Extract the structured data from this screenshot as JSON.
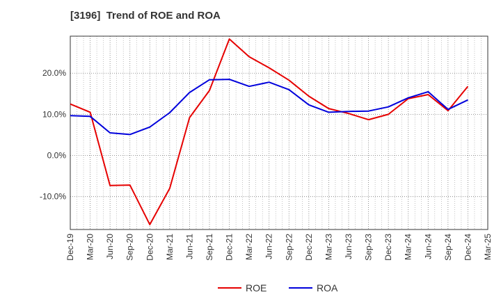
{
  "chart_data": {
    "type": "line",
    "title": "[3196]  Trend of ROE and ROA",
    "xlabel": "",
    "ylabel": "",
    "categories": [
      "Dec-19",
      "Mar-20",
      "Jun-20",
      "Sep-20",
      "Dec-20",
      "Mar-21",
      "Jun-21",
      "Sep-21",
      "Dec-21",
      "Mar-22",
      "Jun-22",
      "Sep-22",
      "Dec-22",
      "Mar-23",
      "Jun-23",
      "Sep-23",
      "Dec-23",
      "Mar-24",
      "Jun-24",
      "Sep-24",
      "Dec-24",
      "Mar-25"
    ],
    "ylim": [
      -18,
      29
    ],
    "yticks": [
      -10,
      0,
      10,
      20
    ],
    "ytick_labels": [
      "-10.0%",
      "0.0%",
      "10.0%",
      "20.0%"
    ],
    "grid": true,
    "legend_position": "bottom-center",
    "series": [
      {
        "name": "ROE",
        "color": "#e60000",
        "values": [
          12.5,
          10.5,
          -7.3,
          -7.2,
          -16.8,
          -8.0,
          9.2,
          15.8,
          28.3,
          24.0,
          21.3,
          18.3,
          14.4,
          11.4,
          10.2,
          8.7,
          10.0,
          13.8,
          14.8,
          10.9,
          16.8,
          null
        ]
      },
      {
        "name": "ROA",
        "color": "#0000dc",
        "values": [
          9.7,
          9.5,
          5.5,
          5.1,
          6.9,
          10.4,
          15.3,
          18.4,
          18.5,
          16.8,
          17.8,
          16.0,
          12.3,
          10.5,
          10.7,
          10.8,
          11.8,
          14.0,
          15.5,
          11.2,
          13.5,
          null
        ]
      }
    ]
  }
}
